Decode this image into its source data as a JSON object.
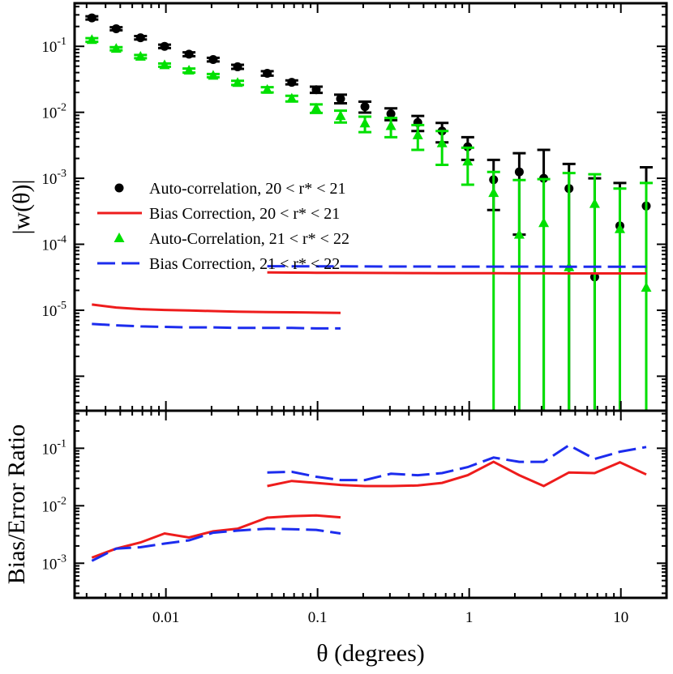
{
  "chart_data": {
    "type": "scatter",
    "x_axis": {
      "label": "θ (degrees)",
      "scale": "log",
      "range": [
        0.0025,
        20
      ],
      "ticks": [
        {
          "value": 0.01,
          "label": "0.01"
        },
        {
          "value": 0.1,
          "label": "0.1"
        },
        {
          "value": 1,
          "label": "1"
        },
        {
          "value": 10,
          "label": "10"
        }
      ]
    },
    "panels": [
      {
        "name": "top",
        "ylabel": "|w(θ)|",
        "yscale": "log",
        "ylim": [
          3e-07,
          0.45
        ],
        "yticks": [
          {
            "value": 0.1,
            "mant": "10",
            "exp": "-1"
          },
          {
            "value": 0.01,
            "mant": "10",
            "exp": "-2"
          },
          {
            "value": 0.001,
            "mant": "10",
            "exp": "-3"
          },
          {
            "value": 0.0001,
            "mant": "10",
            "exp": "-4"
          },
          {
            "value": 1e-05,
            "mant": "10",
            "exp": "-5"
          }
        ],
        "series": [
          {
            "name": "Auto-correlation, 20 < r* < 21",
            "kind": "points",
            "marker": "circle",
            "color": "#000000",
            "x": [
              0.00325,
              0.0047,
              0.0068,
              0.0098,
              0.0142,
              0.0205,
              0.0297,
              0.0466,
              0.0676,
              0.098,
              0.1418,
              0.2053,
              0.3046,
              0.4582,
              0.6621,
              0.9776,
              1.448,
              2.138,
              3.1,
              4.55,
              6.72,
              9.85,
              14.7
            ],
            "y": [
              0.27,
              0.185,
              0.135,
              0.1,
              0.076,
              0.063,
              0.049,
              0.039,
              0.0285,
              0.022,
              0.016,
              0.0122,
              0.0095,
              0.007,
              0.0052,
              0.003,
              0.00095,
              0.00125,
              0.001,
              0.0007,
              3.2e-05,
              0.00019,
              0.00038
            ],
            "err_hi": [
              0.285,
              0.195,
              0.143,
              0.106,
              0.081,
              0.067,
              0.0525,
              0.042,
              0.0305,
              0.0245,
              0.0185,
              0.0145,
              0.0115,
              0.0088,
              0.0069,
              0.0042,
              0.0019,
              0.0024,
              0.0027,
              0.00165,
              0.001,
              0.00085,
              0.00147
            ],
            "err_lo": [
              0.255,
              0.175,
              0.127,
              0.094,
              0.071,
              0.059,
              0.0455,
              0.036,
              0.0265,
              0.0197,
              0.0137,
              0.0099,
              0.0076,
              0.0052,
              0.0035,
              0.0019,
              0.00033,
              0.00014,
              null,
              null,
              null,
              null,
              null
            ]
          },
          {
            "name": "Auto-Correlation, 21 < r* < 22",
            "kind": "points",
            "marker": "triangle",
            "color": "#00e000",
            "x": [
              0.00325,
              0.0047,
              0.0068,
              0.0098,
              0.0142,
              0.0205,
              0.0297,
              0.0466,
              0.0676,
              0.098,
              0.1418,
              0.2053,
              0.3046,
              0.4582,
              0.6621,
              0.9776,
              1.448,
              2.138,
              3.1,
              4.55,
              6.72,
              9.85,
              14.7
            ],
            "y": [
              0.125,
              0.092,
              0.07,
              0.052,
              0.043,
              0.036,
              0.028,
              0.022,
              0.0162,
              0.0115,
              0.0088,
              0.0068,
              0.0062,
              0.0045,
              0.0034,
              0.0018,
              0.0006,
              0.00014,
              0.00021,
              4.5e-05,
              0.00041,
              0.00017,
              2.2e-05
            ],
            "err_hi": [
              0.133,
              0.097,
              0.074,
              0.055,
              0.046,
              0.038,
              0.03,
              0.024,
              0.0178,
              0.0132,
              0.0106,
              0.0086,
              0.0082,
              0.0064,
              0.0052,
              0.0029,
              0.00125,
              0.00094,
              0.00097,
              0.0012,
              0.00115,
              0.0007,
              0.00085
            ],
            "err_lo": [
              0.117,
              0.087,
              0.066,
              0.049,
              0.04,
              0.034,
              0.026,
              0.02,
              0.0146,
              0.0098,
              0.007,
              0.005,
              0.0042,
              0.0027,
              0.0016,
              0.0008,
              null,
              null,
              null,
              null,
              null,
              null,
              null
            ]
          },
          {
            "name": "Bias Correction, 20 < r* < 21",
            "kind": "line",
            "dash": "solid",
            "color": "#ee1c1c",
            "segments": [
              {
                "x": [
                  0.00325,
                  0.0047,
                  0.0068,
                  0.0098,
                  0.0142,
                  0.0205,
                  0.0297,
                  0.0466,
                  0.0676,
                  0.098,
                  0.1418
                ],
                "y": [
                  1.22e-05,
                  1.1e-05,
                  1.04e-05,
                  1.01e-05,
                  9.9e-06,
                  9.7e-06,
                  9.5e-06,
                  9.4e-06,
                  9.3e-06,
                  9.2e-06,
                  9.1e-06
                ]
              },
              {
                "x": [
                  0.0466,
                  0.0676,
                  0.098,
                  0.1418,
                  0.2053,
                  0.3046,
                  0.4582,
                  0.6621,
                  0.9776,
                  1.448,
                  2.138,
                  3.1,
                  4.55,
                  6.72,
                  9.85,
                  14.7
                ],
                "y": [
                  3.75e-05,
                  3.72e-05,
                  3.7e-05,
                  3.69e-05,
                  3.68e-05,
                  3.67e-05,
                  3.66e-05,
                  3.65e-05,
                  3.64e-05,
                  3.64e-05,
                  3.63e-05,
                  3.63e-05,
                  3.62e-05,
                  3.62e-05,
                  3.62e-05,
                  3.62e-05
                ]
              }
            ]
          },
          {
            "name": "Bias Correction, 21 < r* < 22",
            "kind": "line",
            "dash": "dashed",
            "color": "#1c2cee",
            "segments": [
              {
                "x": [
                  0.00325,
                  0.0047,
                  0.0068,
                  0.0098,
                  0.0142,
                  0.0205,
                  0.0297,
                  0.0466,
                  0.0676,
                  0.098,
                  0.1418
                ],
                "y": [
                  6.2e-06,
                  5.9e-06,
                  5.7e-06,
                  5.6e-06,
                  5.5e-06,
                  5.5e-06,
                  5.4e-06,
                  5.4e-06,
                  5.4e-06,
                  5.3e-06,
                  5.3e-06
                ]
              },
              {
                "x": [
                  0.0466,
                  0.0676,
                  0.098,
                  0.1418,
                  0.2053,
                  0.3046,
                  0.4582,
                  0.6621,
                  0.9776,
                  1.448,
                  2.138,
                  3.1,
                  4.55,
                  6.72,
                  9.85,
                  14.7
                ],
                "y": [
                  4.65e-05,
                  4.64e-05,
                  4.63e-05,
                  4.62e-05,
                  4.61e-05,
                  4.6e-05,
                  4.6e-05,
                  4.59e-05,
                  4.59e-05,
                  4.58e-05,
                  4.58e-05,
                  4.58e-05,
                  4.57e-05,
                  4.57e-05,
                  4.57e-05,
                  4.57e-05
                ]
              }
            ]
          }
        ],
        "legend": {
          "position": "center-left",
          "entries": [
            {
              "label": "Auto-correlation, 20 < r* < 21",
              "marker": "circle",
              "color": "#000000"
            },
            {
              "label": "Bias Correction, 20 < r* < 21",
              "marker": "solid-line",
              "color": "#ee1c1c"
            },
            {
              "label": "Auto-Correlation, 21 < r* < 22",
              "marker": "triangle",
              "color": "#00e000"
            },
            {
              "label": "Bias Correction, 21 < r* < 22",
              "marker": "dashed-line",
              "color": "#1c2cee"
            }
          ]
        }
      },
      {
        "name": "bottom",
        "ylabel": "Bias/Error Ratio",
        "yscale": "log",
        "ylim": [
          0.00025,
          0.45
        ],
        "yticks": [
          {
            "value": 0.1,
            "mant": "10",
            "exp": "-1"
          },
          {
            "value": 0.01,
            "mant": "10",
            "exp": "-2"
          },
          {
            "value": 0.001,
            "mant": "10",
            "exp": "-3"
          }
        ],
        "series": [
          {
            "name": "Bias/Error Ratio, 20 < r* < 21",
            "kind": "line",
            "dash": "solid",
            "color": "#ee1c1c",
            "segments": [
              {
                "x": [
                  0.00325,
                  0.0047,
                  0.0068,
                  0.0098,
                  0.0142,
                  0.0205,
                  0.0297,
                  0.0466,
                  0.0676,
                  0.098,
                  0.1418
                ],
                "y": [
                  0.00125,
                  0.0018,
                  0.0023,
                  0.0033,
                  0.0028,
                  0.0036,
                  0.004,
                  0.0062,
                  0.0066,
                  0.0068,
                  0.0063
                ]
              },
              {
                "x": [
                  0.0466,
                  0.0676,
                  0.098,
                  0.1418,
                  0.2053,
                  0.3046,
                  0.4582,
                  0.6621,
                  0.9776,
                  1.448,
                  2.138,
                  3.1,
                  4.55,
                  6.72,
                  9.85,
                  14.7
                ],
                "y": [
                  0.022,
                  0.027,
                  0.025,
                  0.023,
                  0.022,
                  0.022,
                  0.0225,
                  0.025,
                  0.034,
                  0.058,
                  0.034,
                  0.022,
                  0.038,
                  0.037,
                  0.057,
                  0.035
                ]
              }
            ]
          },
          {
            "name": "Bias/Error Ratio, 21 < r* < 22",
            "kind": "line",
            "dash": "dashed",
            "color": "#1c2cee",
            "segments": [
              {
                "x": [
                  0.00325,
                  0.0047,
                  0.0068,
                  0.0098,
                  0.0142,
                  0.0205,
                  0.0297,
                  0.0466,
                  0.0676,
                  0.098,
                  0.1418
                ],
                "y": [
                  0.0011,
                  0.0018,
                  0.0019,
                  0.0022,
                  0.0025,
                  0.0034,
                  0.0037,
                  0.004,
                  0.0039,
                  0.0038,
                  0.0033
                ]
              },
              {
                "x": [
                  0.0466,
                  0.0676,
                  0.098,
                  0.1418,
                  0.2053,
                  0.3046,
                  0.4582,
                  0.6621,
                  0.9776,
                  1.448,
                  2.138,
                  3.1,
                  4.55,
                  6.72,
                  9.85,
                  14.7
                ],
                "y": [
                  0.038,
                  0.039,
                  0.032,
                  0.028,
                  0.028,
                  0.036,
                  0.034,
                  0.037,
                  0.047,
                  0.069,
                  0.058,
                  0.058,
                  0.113,
                  0.065,
                  0.087,
                  0.105
                ]
              }
            ]
          }
        ]
      }
    ]
  }
}
